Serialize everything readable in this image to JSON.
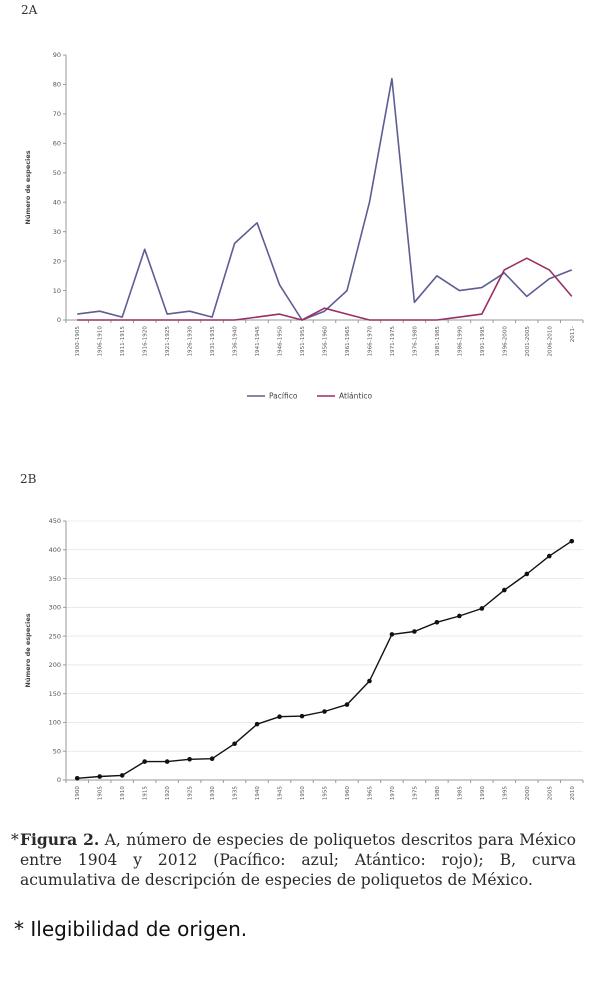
{
  "figure": {
    "caption_star": "*",
    "caption_bold": "Figura 2.",
    "caption_text": " A, número de especies de poliquetos descritos para México entre 1904 y 2012 (Pacífico: azul; Atántico: rojo); B, curva acumulativa de descripción de especies de poliquetos de México.",
    "note": "* Ilegibilidad de origen."
  },
  "chart_data": [
    {
      "panel": "2A",
      "type": "line",
      "ylabel": "Número de especies",
      "xlabel": "",
      "ylim": [
        0,
        90
      ],
      "yticks": [
        0,
        10,
        20,
        30,
        40,
        50,
        60,
        70,
        80,
        90
      ],
      "grid": false,
      "legend": "bottom",
      "categories": [
        "1900-1905",
        "1906-1910",
        "1911-1915",
        "1916-1920",
        "1921-1925",
        "1926-1930",
        "1931-1935",
        "1936-1940",
        "1941-1945",
        "1946-1950",
        "1951-1955",
        "1956-1960",
        "1961-1965",
        "1966-1970",
        "1971-1975",
        "1976-1980",
        "1981-1985",
        "1986-1990",
        "1991-1995",
        "1996-2000",
        "2001-2005",
        "2006-2010",
        "2011-"
      ],
      "series": [
        {
          "name": "Pacífico",
          "color": "#5d5d95",
          "values": [
            2,
            3,
            1,
            24,
            2,
            3,
            1,
            26,
            33,
            12,
            0,
            3,
            10,
            40,
            82,
            6,
            15,
            10,
            11,
            16,
            8,
            14,
            17
          ]
        },
        {
          "name": "Atlántico",
          "color": "#9a2f64",
          "values": [
            0,
            0,
            0,
            0,
            0,
            0,
            0,
            0,
            1,
            2,
            0,
            4,
            2,
            0,
            0,
            0,
            0,
            1,
            2,
            17,
            21,
            17,
            8
          ]
        }
      ]
    },
    {
      "panel": "2B",
      "type": "line",
      "ylabel": "Número de especies",
      "xlabel": "",
      "ylim": [
        0,
        450
      ],
      "yticks": [
        0,
        50,
        100,
        150,
        200,
        250,
        300,
        350,
        400,
        450
      ],
      "grid": true,
      "categories": [
        "1900",
        "1905",
        "1910",
        "1915",
        "1920",
        "1925",
        "1930",
        "1935",
        "1940",
        "1945",
        "1950",
        "1955",
        "1960",
        "1965",
        "1970",
        "1975",
        "1980",
        "1985",
        "1990",
        "1995",
        "2000",
        "2005",
        "2010"
      ],
      "series": [
        {
          "name": "",
          "color": "#111111",
          "values": [
            3,
            6,
            8,
            32,
            32,
            36,
            37,
            63,
            97,
            110,
            111,
            119,
            131,
            172,
            253,
            258,
            274,
            285,
            298,
            330,
            358,
            389,
            415
          ]
        }
      ]
    }
  ]
}
